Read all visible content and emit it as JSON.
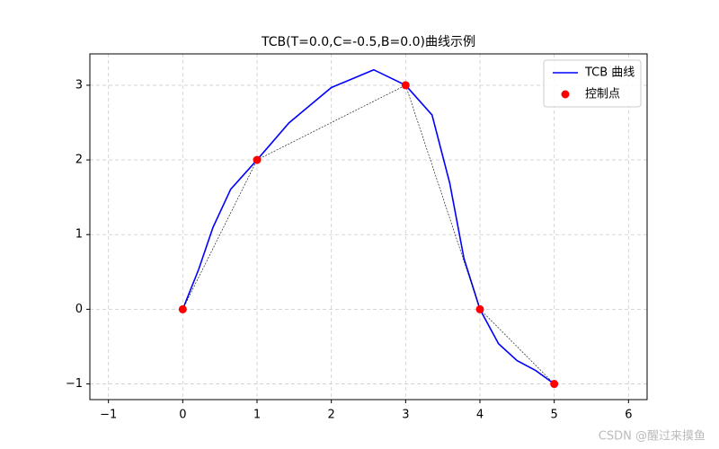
{
  "chart_data": {
    "type": "line",
    "title": "TCB(T=0.0,C=-0.5,B=0.0)曲线示例",
    "xlim": [
      -1.25,
      6.25
    ],
    "ylim": [
      -1.21,
      3.42
    ],
    "xticks": [
      {
        "value": -1,
        "label": "−1"
      },
      0,
      1,
      2,
      3,
      4,
      5,
      6
    ],
    "yticks": [
      {
        "value": -1,
        "label": "−1"
      },
      0,
      1,
      2,
      3
    ],
    "grid": true,
    "legend": "upper right",
    "series": [
      {
        "name": "TCB 曲线",
        "color": "#0000ff",
        "kind": "line",
        "x": [
          0,
          0.2148,
          0.406,
          0.6445,
          1,
          1.4297,
          2.0,
          2.5703,
          3,
          3.3555,
          3.594,
          3.7852,
          4,
          4.25,
          4.5,
          4.75,
          5
        ],
        "values": [
          0,
          0.5352,
          1.094,
          1.6055,
          2,
          2.496,
          2.969,
          3.207,
          3,
          2.6016,
          1.6875,
          0.6797,
          0,
          -0.4609,
          -0.6875,
          -0.8203,
          -1
        ]
      },
      {
        "name": "控制点",
        "color": "#ff0000",
        "kind": "scatter",
        "x": [
          0,
          1,
          3,
          4,
          5
        ],
        "values": [
          0,
          2,
          3,
          0,
          -1
        ]
      }
    ]
  },
  "watermark": "CSDN @醒过来摸鱼"
}
